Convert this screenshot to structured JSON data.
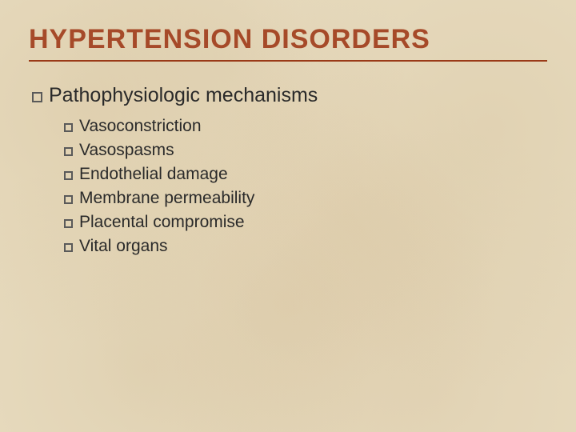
{
  "colors": {
    "title": "#a64a29",
    "rule": "#9a3a18",
    "body": "#2a2a2a",
    "bullet": "#5a5a5a",
    "bg": "#e8dcc0"
  },
  "title": "HYPERTENSION DISORDERS",
  "level1": {
    "text": "Pathophysiologic mechanisms"
  },
  "level2_items": [
    {
      "text": "Vasoconstriction"
    },
    {
      "text": "Vasospasms"
    },
    {
      "text": "Endothelial damage"
    },
    {
      "text": "Membrane permeability"
    },
    {
      "text": "Placental compromise"
    },
    {
      "text": "Vital organs"
    }
  ]
}
